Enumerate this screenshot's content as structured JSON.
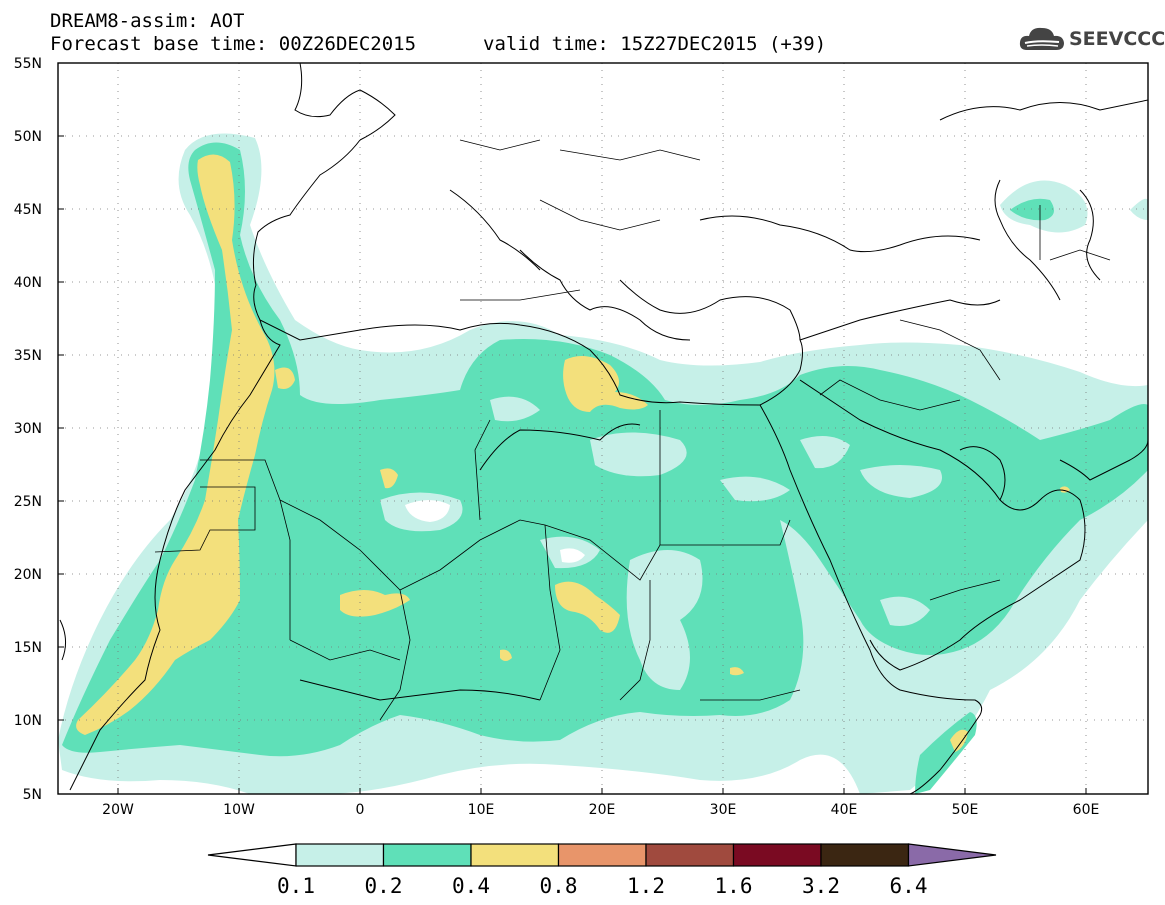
{
  "header": {
    "title": "DREAM8-assim: AOT",
    "base_time": "Forecast base time: 00Z26DEC2015",
    "valid_time": "valid time: 15Z27DEC2015 (+39)"
  },
  "logo": {
    "text": "SEEVCCC",
    "icon": "cloud-icon"
  },
  "map": {
    "lon_range": [
      -25,
      65
    ],
    "lat_range": [
      5,
      55
    ],
    "lat_labels": [
      "5N",
      "10N",
      "15N",
      "20N",
      "25N",
      "30N",
      "35N",
      "40N",
      "45N",
      "50N",
      "55N"
    ],
    "lon_labels": [
      "20W",
      "10W",
      "0",
      "10E",
      "20E",
      "30E",
      "40E",
      "50E",
      "60E"
    ],
    "grid": true
  },
  "colorbar": {
    "labels": [
      "0.1",
      "0.2",
      "0.4",
      "0.8",
      "1.2",
      "1.6",
      "3.2",
      "6.4"
    ],
    "colors": [
      "#ffffff",
      "#c6f0e8",
      "#5fe0b8",
      "#f3e07c",
      "#e8956a",
      "#a04a3e",
      "#7a0a22",
      "#3b2612",
      "#8a6aa8"
    ]
  },
  "colors": {
    "level_01": "#c6f0e8",
    "level_02": "#5fe0b8",
    "level_04": "#f3e07c",
    "border": "#000000"
  }
}
